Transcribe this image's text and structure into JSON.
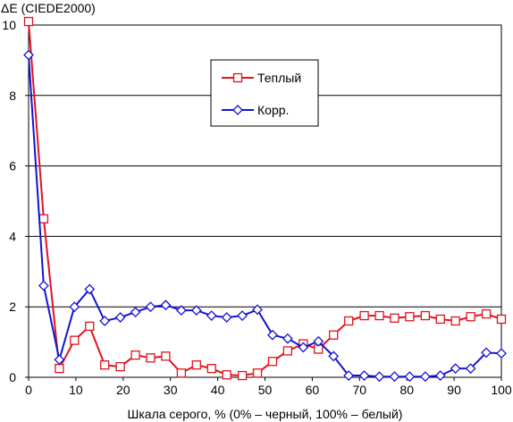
{
  "chart_data": {
    "type": "line",
    "ylabel": "ΔE (CIEDE2000)",
    "xlabel": "Шкала серого, % (0% – черный, 100% – белый)",
    "xlim": [
      0,
      100
    ],
    "ylim": [
      0,
      10
    ],
    "x_ticks": [
      0,
      10,
      20,
      30,
      40,
      50,
      60,
      70,
      80,
      90,
      100
    ],
    "y_ticks": [
      0,
      2,
      4,
      6,
      8,
      10
    ],
    "x_tick_labels": [
      "0",
      "10",
      "20",
      "30",
      "40",
      "50",
      "60",
      "70",
      "80",
      "90",
      "100"
    ],
    "y_tick_labels": [
      "0",
      "2",
      "4",
      "6",
      "8",
      "10"
    ],
    "grid": "horizontal",
    "legend_position": "top-center",
    "series": [
      {
        "name": "Теплый",
        "color": "#e0141e",
        "marker": "square",
        "x": [
          0,
          3.2,
          6.5,
          9.7,
          12.9,
          16.1,
          19.4,
          22.6,
          25.8,
          29,
          32.3,
          35.5,
          38.7,
          41.9,
          45.2,
          48.4,
          51.6,
          54.8,
          58.1,
          61.3,
          64.5,
          67.7,
          71,
          74.2,
          77.4,
          80.6,
          83.9,
          87.1,
          90.3,
          93.5,
          96.8,
          100
        ],
        "y": [
          10.1,
          4.5,
          0.25,
          1.05,
          1.45,
          0.35,
          0.3,
          0.63,
          0.55,
          0.6,
          0.12,
          0.35,
          0.25,
          0.07,
          0.05,
          0.12,
          0.45,
          0.75,
          0.95,
          0.8,
          1.2,
          1.6,
          1.75,
          1.75,
          1.68,
          1.72,
          1.75,
          1.65,
          1.6,
          1.72,
          1.8,
          1.65
        ]
      },
      {
        "name": "Корр.",
        "color": "#1414d2",
        "marker": "diamond",
        "x": [
          0,
          3.2,
          6.5,
          9.7,
          12.9,
          16.1,
          19.4,
          22.6,
          25.8,
          29,
          32.3,
          35.5,
          38.7,
          41.9,
          45.2,
          48.4,
          51.6,
          54.8,
          58.1,
          61.3,
          64.5,
          67.7,
          71,
          74.2,
          77.4,
          80.6,
          83.9,
          87.1,
          90.3,
          93.5,
          96.8,
          100
        ],
        "y": [
          9.15,
          2.6,
          0.5,
          2.0,
          2.5,
          1.6,
          1.7,
          1.85,
          2.0,
          2.05,
          1.9,
          1.9,
          1.75,
          1.7,
          1.75,
          1.92,
          1.2,
          1.1,
          0.85,
          1.02,
          0.6,
          0.05,
          0.05,
          0.02,
          0.02,
          0.02,
          0.02,
          0.05,
          0.25,
          0.25,
          0.7,
          0.68
        ]
      }
    ]
  }
}
